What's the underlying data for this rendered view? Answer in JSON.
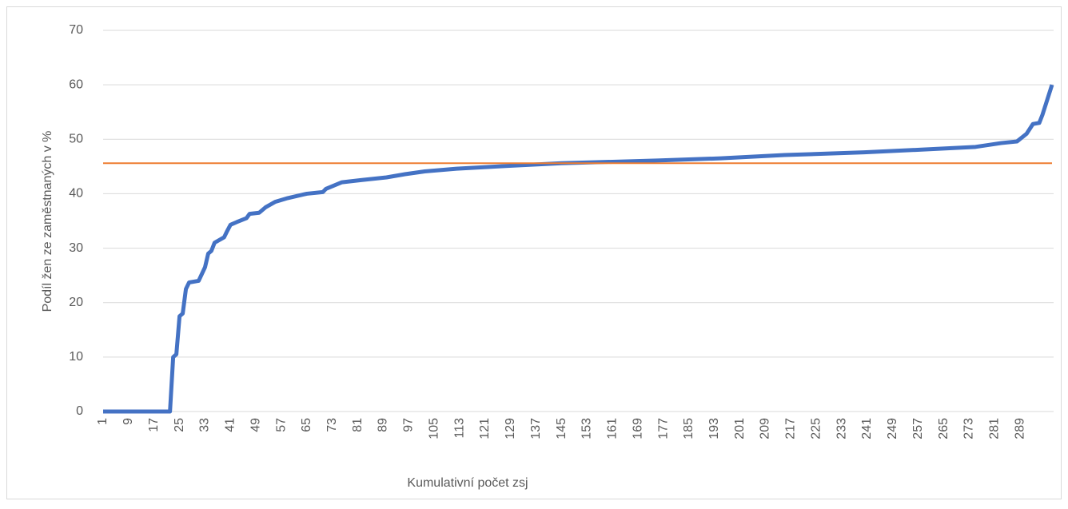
{
  "chart_data": {
    "type": "line",
    "xlabel": "Kumulativní počet zsj",
    "ylabel": "Podíl žen ze zaměstnaných v %",
    "xlim": [
      1,
      299
    ],
    "ylim": [
      0,
      70
    ],
    "yticks": [
      0,
      10,
      20,
      30,
      40,
      50,
      60,
      70
    ],
    "xticks": [
      1,
      9,
      17,
      25,
      33,
      41,
      49,
      57,
      65,
      73,
      81,
      89,
      97,
      105,
      113,
      121,
      129,
      137,
      145,
      153,
      161,
      169,
      177,
      185,
      193,
      201,
      209,
      217,
      225,
      233,
      241,
      249,
      257,
      265,
      273,
      281,
      289
    ],
    "grid": true,
    "series": [
      {
        "color": "#4472c4",
        "x": [
          1,
          22,
          23,
          24,
          25,
          26,
          27,
          28,
          31,
          33,
          34,
          35,
          36,
          39,
          40,
          41,
          43,
          46,
          47,
          50,
          52,
          55,
          59,
          65,
          70,
          71,
          76,
          82,
          90,
          96,
          102,
          112,
          128,
          145,
          175,
          195,
          215,
          240,
          258,
          275,
          283,
          288,
          291,
          293,
          295,
          296,
          299
        ],
        "values": [
          0,
          0,
          10,
          10.5,
          17.5,
          18,
          22.5,
          23.7,
          24,
          26.5,
          29,
          29.5,
          31,
          32,
          33.2,
          34.3,
          34.8,
          35.5,
          36.3,
          36.5,
          37.5,
          38.5,
          39.2,
          40,
          40.3,
          40.9,
          42.1,
          42.5,
          43,
          43.6,
          44.1,
          44.6,
          45.1,
          45.6,
          46.1,
          46.5,
          47.1,
          47.6,
          48.1,
          48.6,
          49.3,
          49.6,
          51,
          52.8,
          53,
          54.5,
          60
        ]
      },
      {
        "color": "#ed7d31",
        "x": [
          1,
          299
        ],
        "values": [
          45.6,
          45.6
        ]
      }
    ]
  }
}
